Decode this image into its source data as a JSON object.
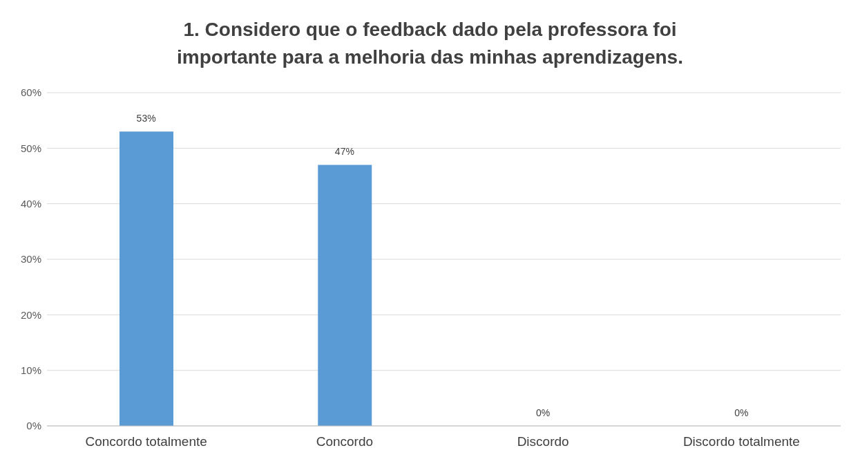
{
  "chart_data": {
    "type": "bar",
    "title": "1. Considero que o feedback dado pela professora foi importante para a melhoria das minhas aprendizagens.",
    "categories": [
      "Concordo totalmente",
      "Concordo",
      "Discordo",
      "Discordo totalmente"
    ],
    "values": [
      53,
      47,
      0,
      0
    ],
    "color": "#5b9bd5",
    "value_labels": [
      "53%",
      "47%",
      "0%",
      "0%"
    ],
    "ylim": [
      0,
      60
    ],
    "yticks": [
      {
        "value": 0,
        "label": "0%"
      },
      {
        "value": 10,
        "label": "10%"
      },
      {
        "value": 20,
        "label": "20%"
      },
      {
        "value": 30,
        "label": "30%"
      },
      {
        "value": 40,
        "label": "40%"
      },
      {
        "value": 50,
        "label": "50%"
      },
      {
        "value": 60,
        "label": "60%"
      }
    ],
    "grid": "y",
    "legend": false
  }
}
